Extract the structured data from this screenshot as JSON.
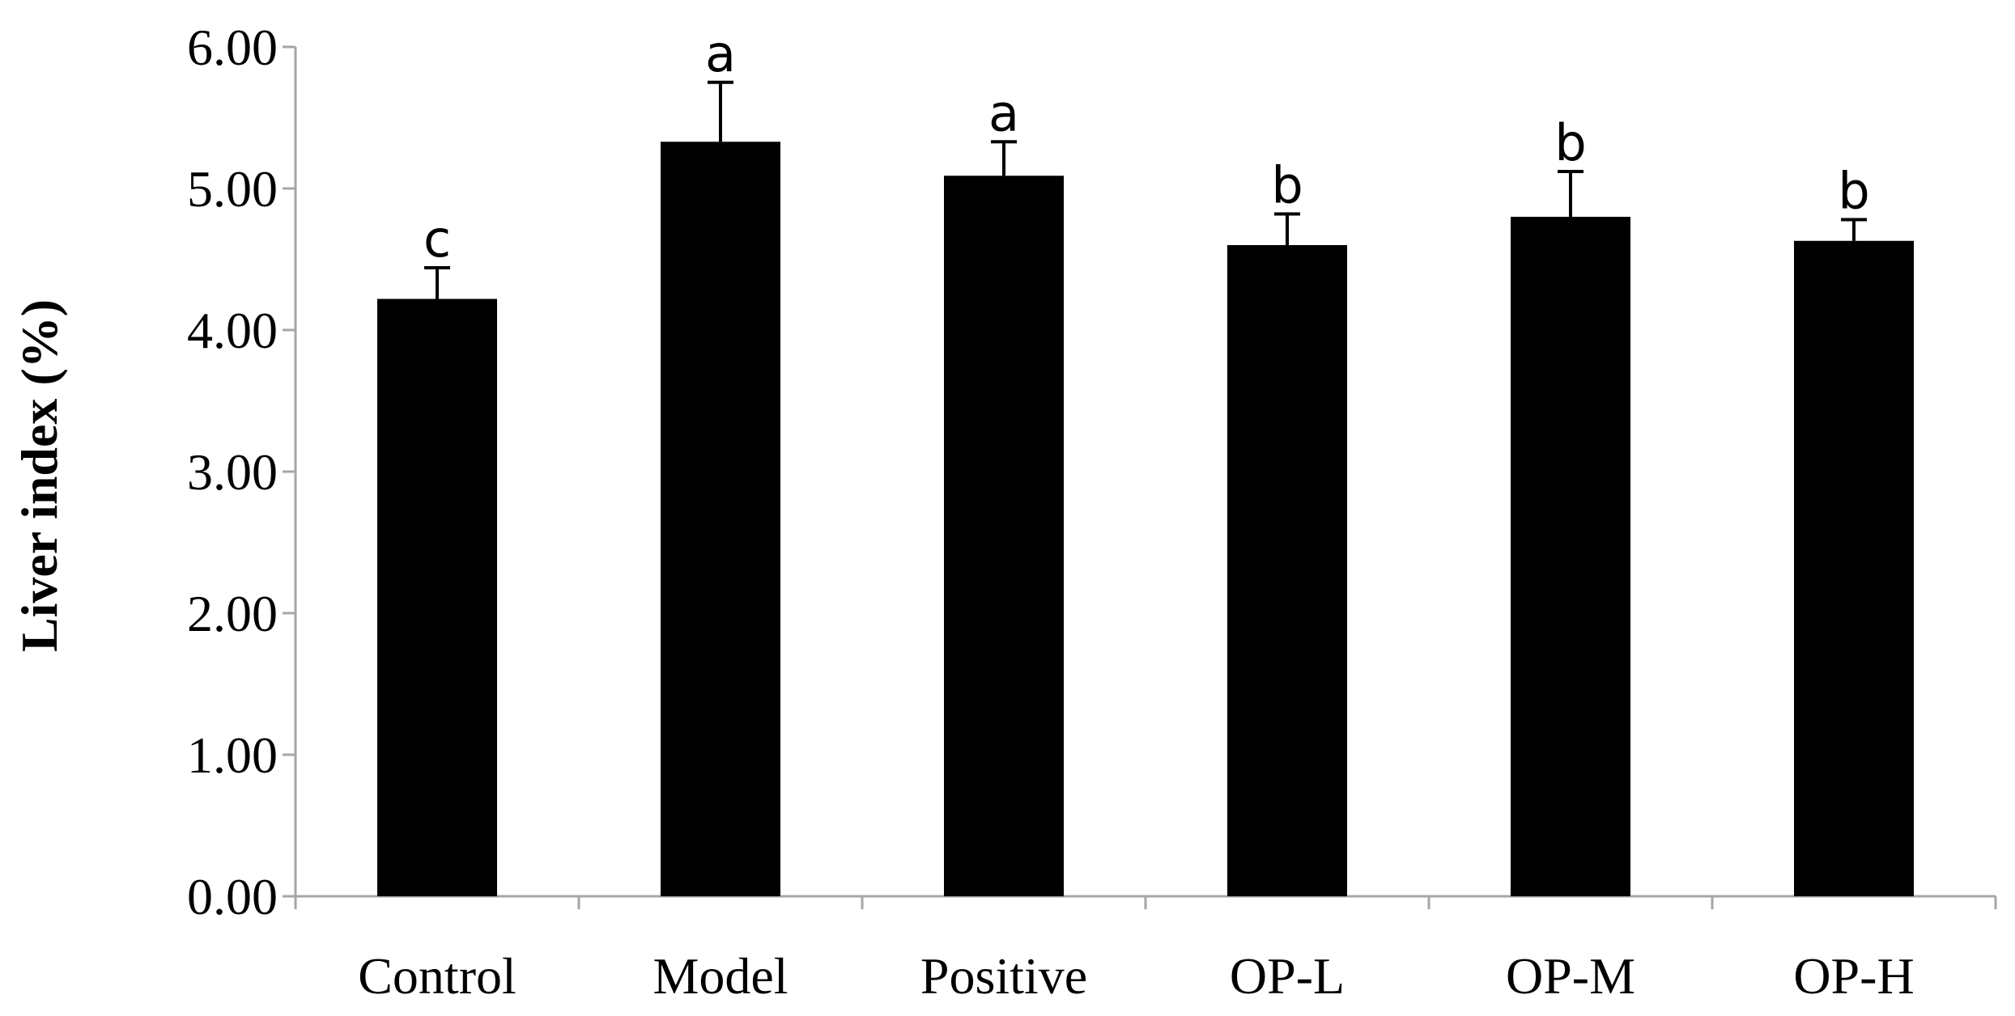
{
  "chart_data": {
    "type": "bar",
    "title": "",
    "xlabel": "",
    "ylabel": "Liver index (%)",
    "ylim": [
      0,
      6
    ],
    "yticks": [
      "0.00",
      "1.00",
      "2.00",
      "3.00",
      "4.00",
      "5.00",
      "6.00"
    ],
    "categories": [
      "Control",
      "Model",
      "Positive",
      "OP-L",
      "OP-M",
      "OP-H"
    ],
    "values": [
      4.22,
      5.33,
      5.09,
      4.6,
      4.8,
      4.63
    ],
    "errors": [
      0.22,
      0.42,
      0.24,
      0.22,
      0.32,
      0.15
    ],
    "significance": [
      "c",
      "a",
      "a",
      "b",
      "b",
      "b"
    ],
    "grid": false,
    "legend": "none",
    "colors": {
      "bar": "#000000",
      "axis": "#a6a6a6",
      "text": "#000000"
    }
  }
}
